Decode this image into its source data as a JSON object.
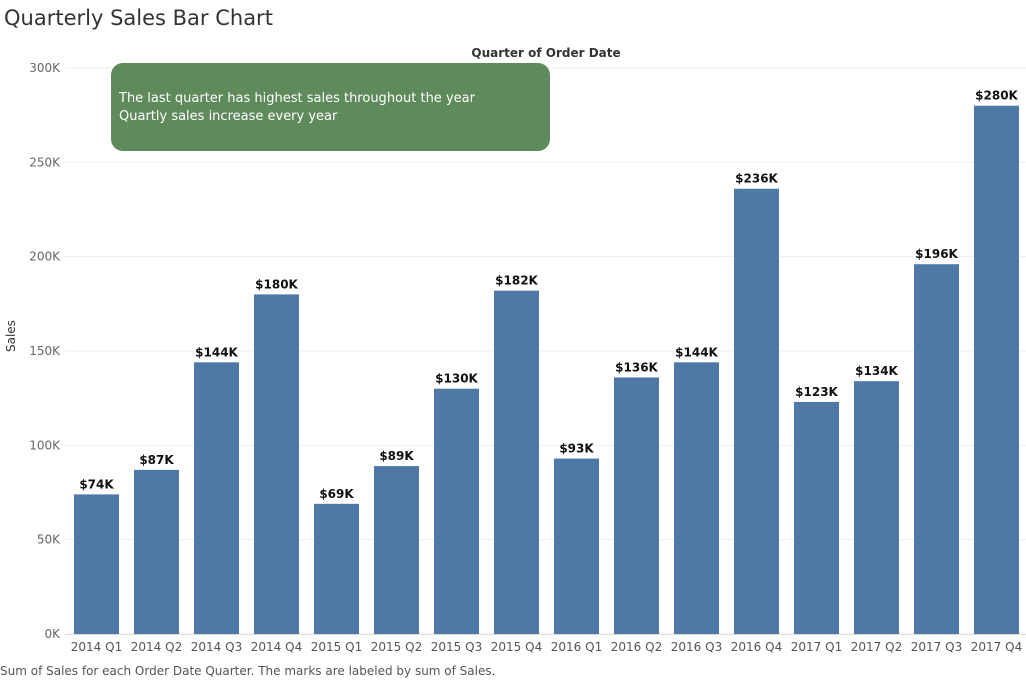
{
  "chart_data": {
    "type": "bar",
    "title": "Quarterly Sales Bar Chart",
    "header": "Quarter of Order Date",
    "ylabel": "Sales",
    "caption": "Sum of Sales for each Order Date Quarter.  The marks are labeled by sum of Sales.",
    "annotation": [
      "The last quarter has highest sales throughout the year",
      "Quartly sales increase every year"
    ],
    "categories": [
      "2014 Q1",
      "2014 Q2",
      "2014 Q3",
      "2014 Q4",
      "2015 Q1",
      "2015 Q2",
      "2015 Q3",
      "2015 Q4",
      "2016 Q1",
      "2016 Q2",
      "2016 Q3",
      "2016 Q4",
      "2017 Q1",
      "2017 Q2",
      "2017 Q3",
      "2017 Q4"
    ],
    "values": [
      74,
      87,
      144,
      180,
      69,
      89,
      130,
      182,
      93,
      136,
      144,
      236,
      123,
      134,
      196,
      280
    ],
    "labels": [
      "$74K",
      "$87K",
      "$144K",
      "$180K",
      "$69K",
      "$89K",
      "$130K",
      "$182K",
      "$93K",
      "$136K",
      "$144K",
      "$236K",
      "$123K",
      "$134K",
      "$196K",
      "$280K"
    ],
    "yticks": [
      0,
      50,
      100,
      150,
      200,
      250,
      300
    ],
    "ytick_labels": [
      "0K",
      "50K",
      "100K",
      "150K",
      "200K",
      "250K",
      "300K"
    ],
    "ylim": [
      0,
      300
    ],
    "bar_color": "#4e79a7",
    "annotation_color": "#5f8a5b",
    "grid": true
  }
}
